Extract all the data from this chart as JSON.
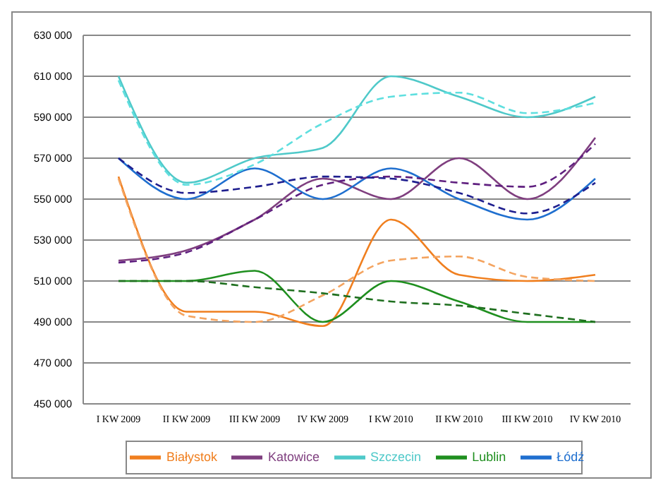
{
  "chart_data": {
    "type": "line",
    "categories": [
      "I KW 2009",
      "II KW 2009",
      "III KW 2009",
      "IV KW 2009",
      "I KW 2010",
      "II KW 2010",
      "III KW 2010",
      "IV KW 2010"
    ],
    "series": [
      {
        "name": "Białystok",
        "color": "#f07f1f",
        "values": [
          561000,
          495000,
          495000,
          488000,
          540000,
          513000,
          510000,
          513000
        ]
      },
      {
        "name": "Katowice",
        "color": "#7f3f7f",
        "values": [
          520000,
          525000,
          540000,
          560000,
          550000,
          570000,
          550000,
          580000
        ]
      },
      {
        "name": "Szczecin",
        "color": "#4fc9c9",
        "values": [
          610000,
          558000,
          570000,
          575000,
          610000,
          600000,
          590000,
          600000
        ]
      },
      {
        "name": "Lublin",
        "color": "#1f8f1f",
        "values": [
          510000,
          510000,
          515000,
          490000,
          510000,
          500000,
          490000,
          490000
        ]
      },
      {
        "name": "Łódź",
        "color": "#1f6fcf",
        "values": [
          570000,
          550000,
          565000,
          550000,
          565000,
          550000,
          540000,
          560000
        ]
      },
      {
        "color": "#f4a460",
        "line_style": "dashed",
        "values": [
          560000,
          493000,
          490000,
          503000,
          520000,
          522000,
          512000,
          510000
        ]
      },
      {
        "color": "#5f1f7f",
        "line_style": "dashed",
        "values": [
          519000,
          524000,
          540000,
          557000,
          561000,
          558000,
          556000,
          577000
        ]
      },
      {
        "color": "#5fdfdf",
        "line_style": "dashed",
        "values": [
          608000,
          557000,
          567000,
          587000,
          600000,
          602000,
          592000,
          597000
        ]
      },
      {
        "color": "#1f6f1f",
        "line_style": "dashed",
        "values": [
          510000,
          510000,
          507000,
          504000,
          500000,
          498000,
          494000,
          490000
        ]
      },
      {
        "color": "#1f1f8f",
        "line_style": "dashed",
        "values": [
          570000,
          553000,
          556000,
          561000,
          560000,
          553000,
          543000,
          558000
        ]
      }
    ],
    "ylim": [
      450000,
      630000
    ],
    "yticks": [
      {
        "value": 450000,
        "label": "450 000"
      },
      {
        "value": 470000,
        "label": "470 000"
      },
      {
        "value": 490000,
        "label": "490 000"
      },
      {
        "value": 510000,
        "label": "510 000"
      },
      {
        "value": 530000,
        "label": "530 000"
      },
      {
        "value": 550000,
        "label": "550 000"
      },
      {
        "value": 570000,
        "label": "570 000"
      },
      {
        "value": 590000,
        "label": "590 000"
      },
      {
        "value": 610000,
        "label": "610 000"
      },
      {
        "value": 630000,
        "label": "630 000"
      }
    ],
    "grid": "y",
    "legend": "bottom",
    "marker": "none",
    "line_style": "solid"
  }
}
